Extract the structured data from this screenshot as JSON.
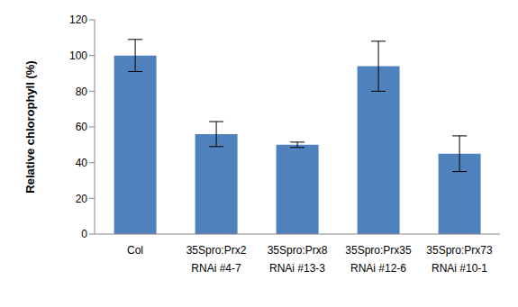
{
  "chart_data": {
    "type": "bar",
    "y_label": "Relative chlorophyll (%)",
    "categories": [
      "Col",
      "35Spro:Prx2\nRNAi #4-7",
      "35Spro:Prx8\nRNAi #13-3",
      "35Spro:Prx35\nRNAi #12-6",
      "35Spro:Prx73\nRNAi #10-1"
    ],
    "values": [
      100,
      56,
      50,
      94,
      45
    ],
    "errors": [
      9,
      7,
      1.5,
      14,
      10
    ],
    "color": "#4f81bd",
    "ylim": [
      0,
      120
    ],
    "yticks": [
      0,
      20,
      40,
      60,
      80,
      100,
      120
    ],
    "grid": false
  }
}
